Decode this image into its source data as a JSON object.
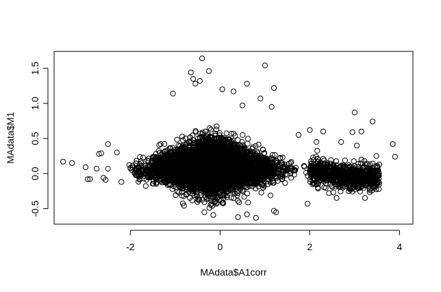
{
  "chart_data": {
    "type": "scatter",
    "title": "",
    "xlabel": "MAdata$A1corr",
    "ylabel": "MAdata$M1",
    "xlim": [
      -3.7,
      4.3
    ],
    "ylim": [
      -0.72,
      1.74
    ],
    "xticks": [
      "-2",
      "0",
      "2",
      "4"
    ],
    "yticks": [
      "-0.5",
      "0.0",
      "0.5",
      "1.0",
      "1.5"
    ],
    "xtick_values": [
      -2,
      0,
      2,
      4
    ],
    "ytick_values": [
      -0.5,
      0.0,
      0.5,
      1.0,
      1.5
    ],
    "grid": false,
    "legend": "none",
    "marker": "open-circle",
    "description_of_cloud": {
      "n_approx": 6000,
      "center": [
        -0.2,
        0.05
      ],
      "core_x_range": [
        -2.0,
        2.2
      ],
      "core_y_range": [
        -0.5,
        0.75
      ],
      "tail_x_range": [
        2.2,
        3.5
      ],
      "tail_y_center": -0.05
    },
    "outliers": [
      {
        "x": -3.5,
        "y": 0.17
      },
      {
        "x": -3.3,
        "y": 0.15
      },
      {
        "x": -3.0,
        "y": 0.09
      },
      {
        "x": -2.95,
        "y": -0.08
      },
      {
        "x": -2.9,
        "y": -0.08
      },
      {
        "x": -2.75,
        "y": 0.07
      },
      {
        "x": -2.7,
        "y": 0.28
      },
      {
        "x": -2.65,
        "y": 0.29
      },
      {
        "x": -2.6,
        "y": -0.06
      },
      {
        "x": -2.55,
        "y": -0.09
      },
      {
        "x": -2.5,
        "y": 0.42
      },
      {
        "x": -2.5,
        "y": 0.07
      },
      {
        "x": -2.3,
        "y": 0.3
      },
      {
        "x": -2.2,
        "y": -0.12
      },
      {
        "x": -0.4,
        "y": 1.64
      },
      {
        "x": -0.65,
        "y": 1.44
      },
      {
        "x": -0.25,
        "y": 1.46
      },
      {
        "x": -0.6,
        "y": 1.35
      },
      {
        "x": -0.55,
        "y": 1.28
      },
      {
        "x": -0.45,
        "y": 1.32
      },
      {
        "x": 1.0,
        "y": 1.54
      },
      {
        "x": 1.2,
        "y": 1.22
      },
      {
        "x": 0.6,
        "y": 1.28
      },
      {
        "x": 0.9,
        "y": 1.07
      },
      {
        "x": 0.3,
        "y": 1.17
      },
      {
        "x": 0.05,
        "y": 1.2
      },
      {
        "x": -1.05,
        "y": 1.14
      },
      {
        "x": 1.15,
        "y": 0.95
      },
      {
        "x": 0.5,
        "y": 0.97
      },
      {
        "x": 3.0,
        "y": 0.87
      },
      {
        "x": 3.4,
        "y": 0.74
      },
      {
        "x": 3.85,
        "y": 0.42
      },
      {
        "x": 3.9,
        "y": 0.24
      },
      {
        "x": 3.55,
        "y": 0.13
      },
      {
        "x": 2.95,
        "y": 0.59
      },
      {
        "x": 3.15,
        "y": 0.6
      },
      {
        "x": 3.05,
        "y": 0.4
      },
      {
        "x": 2.7,
        "y": 0.45
      },
      {
        "x": 2.3,
        "y": 0.6
      },
      {
        "x": 2.0,
        "y": 0.62
      },
      {
        "x": 1.75,
        "y": 0.55
      },
      {
        "x": 2.15,
        "y": 0.45
      },
      {
        "x": 0.8,
        "y": -0.63
      },
      {
        "x": 0.4,
        "y": -0.62
      },
      {
        "x": 1.2,
        "y": -0.53
      },
      {
        "x": 1.25,
        "y": -0.55
      },
      {
        "x": 1.95,
        "y": -0.43
      },
      {
        "x": 0.6,
        "y": -0.58
      },
      {
        "x": -0.15,
        "y": -0.59
      },
      {
        "x": -0.35,
        "y": -0.55
      }
    ]
  }
}
